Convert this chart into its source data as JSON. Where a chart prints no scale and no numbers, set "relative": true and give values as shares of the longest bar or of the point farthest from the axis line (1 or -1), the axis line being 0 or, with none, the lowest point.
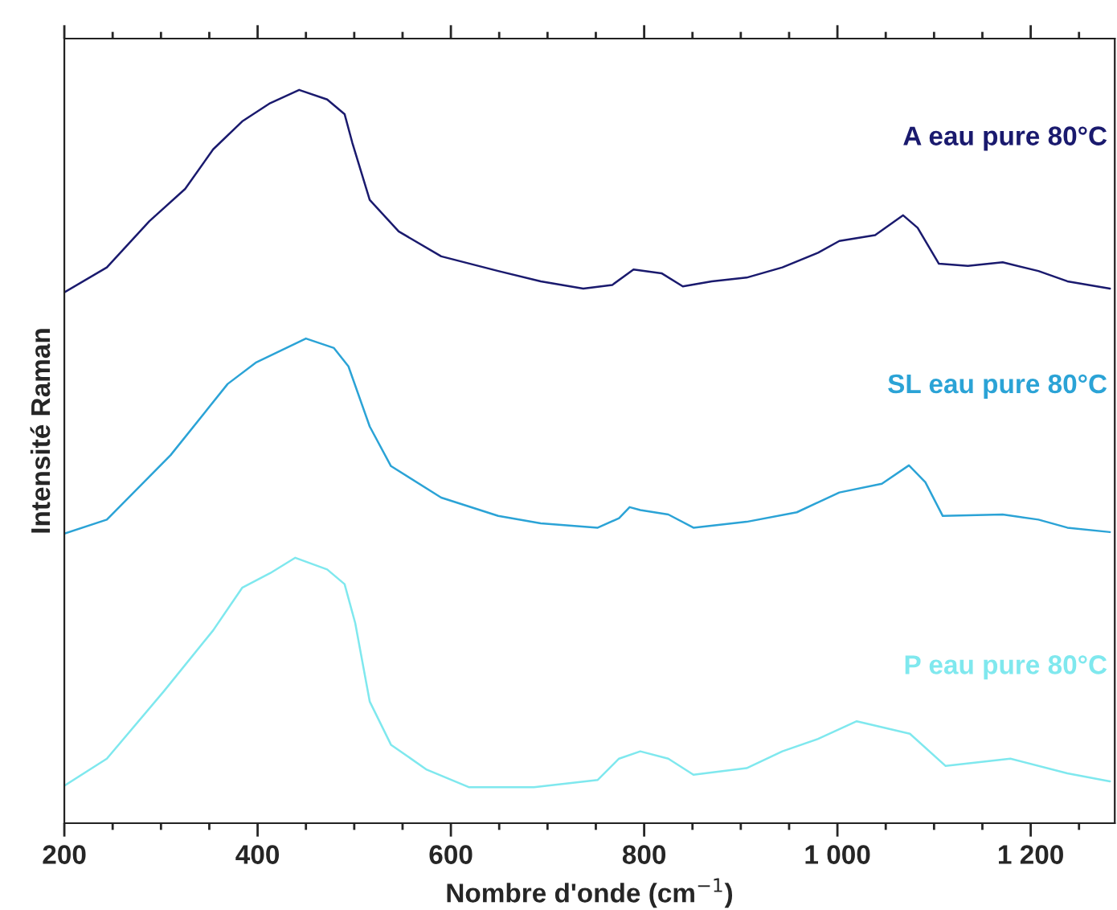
{
  "chart_data": {
    "type": "line",
    "relative": true,
    "xlabel": "Nombre d'onde (cm$^{−1}$)",
    "ylabel": "Intensité Raman",
    "xlim": [
      200,
      1287
    ],
    "xticks": [
      200,
      400,
      600,
      800,
      {
        "value": 1000,
        "label": "1 000"
      },
      {
        "value": 1200,
        "label": "1 200"
      }
    ],
    "tick_labels": "x",
    "legend": false,
    "grid": false,
    "marker": "none",
    "line_style": "solid",
    "series": [
      {
        "name": "A eau pure 80°C",
        "color": "#1a1a6e",
        "x": [
          200,
          244,
          288,
          325,
          354,
          384,
          413,
          443,
          472,
          490,
          498,
          516,
          546,
          590,
          649,
          693,
          737,
          767,
          789,
          818,
          840,
          870,
          906,
          943,
          980,
          1002,
          1039,
          1068,
          1083,
          1105,
          1135,
          1171,
          1208,
          1238,
          1282
        ],
        "values": [
          0.724,
          0.758,
          0.821,
          0.865,
          0.919,
          0.957,
          0.982,
          1.0,
          0.987,
          0.967,
          0.928,
          0.85,
          0.807,
          0.773,
          0.753,
          0.739,
          0.729,
          0.734,
          0.755,
          0.75,
          0.732,
          0.739,
          0.744,
          0.758,
          0.778,
          0.794,
          0.802,
          0.829,
          0.812,
          0.763,
          0.76,
          0.765,
          0.753,
          0.739,
          0.729
        ]
      },
      {
        "name": "SL eau pure 80°C",
        "color": "#2ba3d6",
        "x": [
          200,
          244,
          310,
          369,
          398,
          450,
          479,
          494,
          516,
          538,
          590,
          649,
          693,
          752,
          774,
          785,
          796,
          825,
          851,
          906,
          958,
          1002,
          1046,
          1074,
          1091,
          1109,
          1171,
          1208,
          1238,
          1282
        ],
        "values": [
          0.395,
          0.414,
          0.502,
          0.599,
          0.628,
          0.661,
          0.648,
          0.623,
          0.541,
          0.487,
          0.444,
          0.419,
          0.409,
          0.403,
          0.416,
          0.431,
          0.427,
          0.421,
          0.403,
          0.411,
          0.424,
          0.451,
          0.463,
          0.488,
          0.465,
          0.419,
          0.421,
          0.414,
          0.403,
          0.397
        ]
      },
      {
        "name": "P eau pure 80°C",
        "color": "#7fe8ee",
        "x": [
          200,
          244,
          303,
          354,
          384,
          413,
          439,
          472,
          490,
          501,
          516,
          538,
          575,
          619,
          686,
          752,
          774,
          796,
          825,
          851,
          906,
          943,
          980,
          1020,
          1075,
          1112,
          1179,
          1238,
          1282
        ],
        "values": [
          0.051,
          0.088,
          0.18,
          0.263,
          0.321,
          0.341,
          0.362,
          0.346,
          0.326,
          0.273,
          0.166,
          0.107,
          0.073,
          0.049,
          0.049,
          0.059,
          0.088,
          0.098,
          0.088,
          0.066,
          0.075,
          0.098,
          0.115,
          0.139,
          0.122,
          0.078,
          0.088,
          0.068,
          0.057
        ]
      }
    ]
  }
}
